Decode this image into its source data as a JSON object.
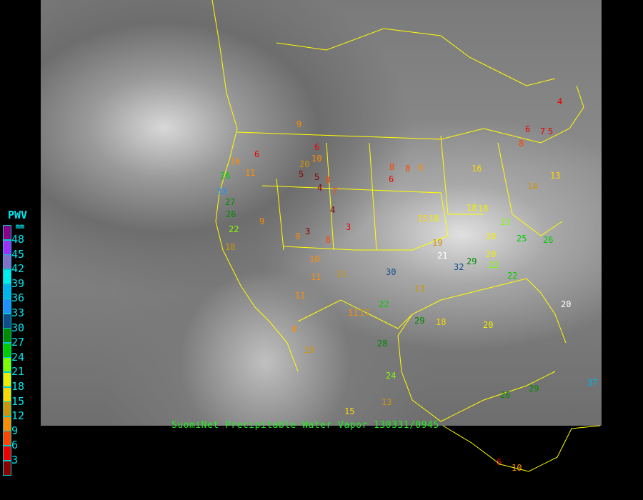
{
  "caption": "SuomiNet Precipitable Water Vapor 130331/0945",
  "legend": {
    "title": "PWV",
    "unit": "mm",
    "labels": [
      "48",
      "45",
      "42",
      "39",
      "36",
      "33",
      "30",
      "27",
      "24",
      "21",
      "18",
      "15",
      "12",
      "9",
      "6",
      "3"
    ],
    "colors": [
      "#8b008b",
      "#9b30ff",
      "#8470cc",
      "#00eeee",
      "#00b2ee",
      "#1e90ff",
      "#104e8b",
      "#008b00",
      "#00cd00",
      "#7fff00",
      "#eeee00",
      "#ffd700",
      "#cd950c",
      "#ff8c00",
      "#ff4500",
      "#ee0000",
      "#8b0000"
    ]
  },
  "border_color": "#ffff00",
  "stations": [
    "9",
    "6",
    "10",
    "8",
    "6",
    "5",
    "5",
    "4",
    "7",
    "8",
    "6",
    "9",
    "8",
    "16",
    "11",
    "26",
    "33",
    "27",
    "26",
    "18",
    "22",
    "20",
    "9",
    "3",
    "4",
    "3",
    "8",
    "9",
    "10",
    "11",
    "15",
    "17",
    "18",
    "11",
    "13",
    "15",
    "18",
    "19",
    "20",
    "21",
    "32",
    "29",
    "22",
    "25",
    "26",
    "20",
    "23",
    "29",
    "22",
    "20",
    "18",
    "22",
    "24",
    "30",
    "28",
    "8",
    "19",
    "11",
    "13",
    "15",
    "6",
    "10",
    "26",
    "29",
    "37",
    "6",
    "8",
    "7",
    "5",
    "4",
    "13",
    "16",
    "14",
    "18",
    "20"
  ],
  "station_colors": [
    "#ff8c00",
    "#ee0000",
    "#ff8c00",
    "#ff4500",
    "#ee0000",
    "#8b0000",
    "#8b0000",
    "#8b0000",
    "#ff4500",
    "#ff4500",
    "#ee0000",
    "#ff8c00",
    "#ff4500",
    "#ff8c00",
    "#ff8c00",
    "#00cd00",
    "#1e90ff",
    "#008b00",
    "#008b00",
    "#cd950c",
    "#7fff00",
    "#cd950c",
    "#ff8c00",
    "#8b0000",
    "#8b0000",
    "#ee0000",
    "#ff4500",
    "#ff8c00",
    "#ff8c00",
    "#ff8c00",
    "#cd950c",
    "#cd950c",
    "#eeee00",
    "#ff8c00",
    "#cd950c",
    "#ffd700",
    "#eeee00",
    "#cd950c",
    "#eeee00",
    "#ffffff",
    "#104e8b",
    "#008b00",
    "#7fff00",
    "#00cd00",
    "#00cd00",
    "#eeee00",
    "#7fff00",
    "#008b00",
    "#00cd00",
    "#eeee00",
    "#ffd700",
    "#00cd00",
    "#7fff00",
    "#104e8b",
    "#008b00",
    "#ff8c00",
    "#cd950c",
    "#ff8c00",
    "#cd950c",
    "#ffd700",
    "#ee0000",
    "#ff8c00",
    "#008b00",
    "#008b00",
    "#00b2ee",
    "#ee0000",
    "#ff4500",
    "#ee0000",
    "#ee0000",
    "#ee0000",
    "#ffd700",
    "#ffd700",
    "#cd950c",
    "#eeee00",
    "#ffffff"
  ]
}
